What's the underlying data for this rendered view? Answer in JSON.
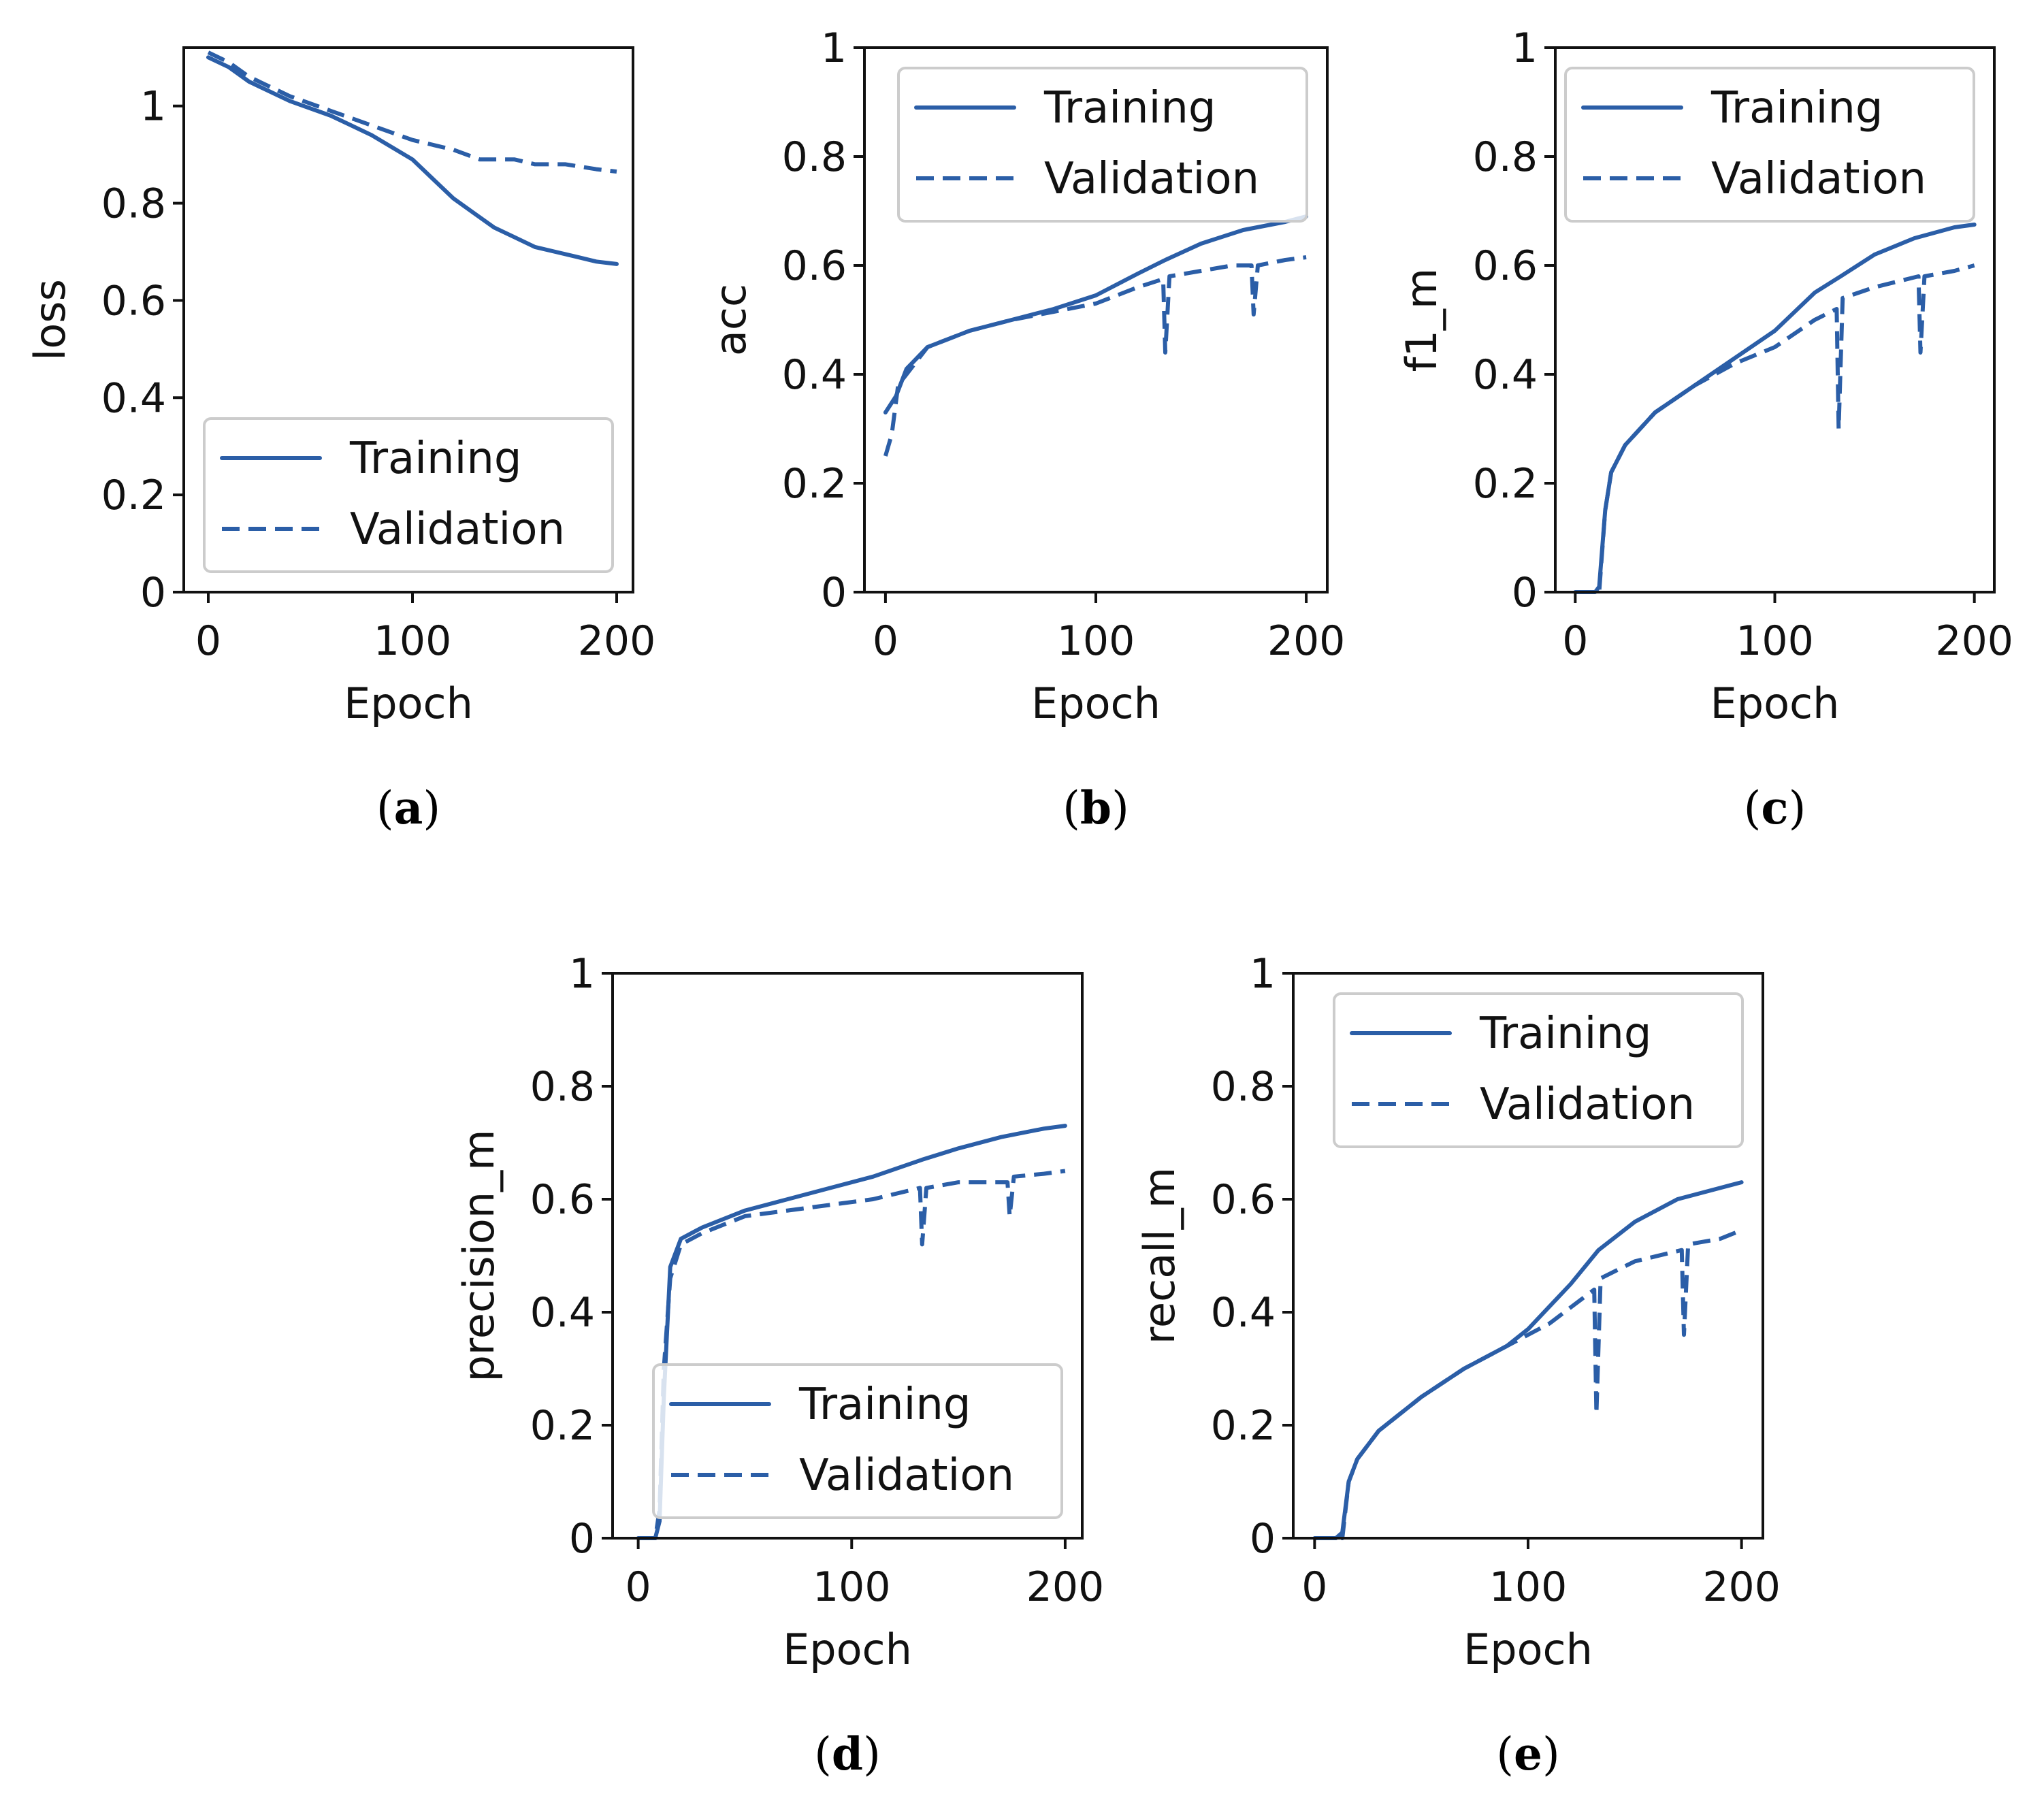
{
  "figure": {
    "captions": [
      "(a)",
      "(b)",
      "(c)",
      "(d)",
      "(e)"
    ]
  },
  "colors": {
    "series": "#2b5ea7"
  },
  "chart_data": [
    {
      "id": "a",
      "type": "line",
      "title": "",
      "caption": "(a)",
      "xlabel": "Epoch",
      "ylabel": "loss",
      "xlim": [
        -12,
        208
      ],
      "ylim": [
        0.0,
        1.12
      ],
      "xticks": [
        0,
        100,
        200
      ],
      "yticks": [
        0.0,
        0.2,
        0.4,
        0.6,
        0.8,
        1.0
      ],
      "legend": {
        "loc": "lower-right"
      },
      "series": [
        {
          "name": "Training",
          "style": "solid",
          "points": [
            [
              0,
              1.1
            ],
            [
              10,
              1.08
            ],
            [
              20,
              1.05
            ],
            [
              40,
              1.01
            ],
            [
              60,
              0.98
            ],
            [
              80,
              0.94
            ],
            [
              100,
              0.89
            ],
            [
              110,
              0.85
            ],
            [
              120,
              0.81
            ],
            [
              130,
              0.78
            ],
            [
              140,
              0.75
            ],
            [
              150,
              0.73
            ],
            [
              160,
              0.71
            ],
            [
              170,
              0.7
            ],
            [
              180,
              0.69
            ],
            [
              190,
              0.68
            ],
            [
              200,
              0.675
            ]
          ]
        },
        {
          "name": "Validation",
          "style": "dashed",
          "points": [
            [
              0,
              1.11
            ],
            [
              10,
              1.09
            ],
            [
              20,
              1.06
            ],
            [
              40,
              1.02
            ],
            [
              60,
              0.99
            ],
            [
              80,
              0.96
            ],
            [
              100,
              0.93
            ],
            [
              120,
              0.91
            ],
            [
              133,
              0.89
            ],
            [
              150,
              0.89
            ],
            [
              160,
              0.88
            ],
            [
              175,
              0.88
            ],
            [
              190,
              0.87
            ],
            [
              200,
              0.865
            ]
          ]
        }
      ]
    },
    {
      "id": "b",
      "type": "line",
      "title": "",
      "caption": "(b)",
      "xlabel": "Epoch",
      "ylabel": "acc",
      "xlim": [
        -10,
        210
      ],
      "ylim": [
        0.0,
        1.0
      ],
      "xticks": [
        0,
        100,
        200
      ],
      "yticks": [
        0.0,
        0.2,
        0.4,
        0.6,
        0.8,
        1.0
      ],
      "legend": {
        "loc": "top-right"
      },
      "series": [
        {
          "name": "Training",
          "style": "solid",
          "points": [
            [
              0,
              0.33
            ],
            [
              5,
              0.36
            ],
            [
              10,
              0.41
            ],
            [
              20,
              0.45
            ],
            [
              40,
              0.48
            ],
            [
              60,
              0.5
            ],
            [
              80,
              0.52
            ],
            [
              100,
              0.545
            ],
            [
              120,
              0.585
            ],
            [
              133,
              0.61
            ],
            [
              150,
              0.64
            ],
            [
              170,
              0.665
            ],
            [
              190,
              0.68
            ],
            [
              200,
              0.69
            ]
          ]
        },
        {
          "name": "Validation",
          "style": "dashed",
          "points": [
            [
              0,
              0.25
            ],
            [
              3,
              0.29
            ],
            [
              6,
              0.38
            ],
            [
              10,
              0.4
            ],
            [
              20,
              0.45
            ],
            [
              40,
              0.48
            ],
            [
              60,
              0.5
            ],
            [
              80,
              0.515
            ],
            [
              100,
              0.53
            ],
            [
              120,
              0.56
            ],
            [
              132,
              0.575
            ],
            [
              133,
              0.44
            ],
            [
              135,
              0.58
            ],
            [
              150,
              0.59
            ],
            [
              165,
              0.6
            ],
            [
              174,
              0.6
            ],
            [
              175,
              0.51
            ],
            [
              177,
              0.6
            ],
            [
              190,
              0.61
            ],
            [
              200,
              0.615
            ]
          ]
        }
      ]
    },
    {
      "id": "c",
      "type": "line",
      "title": "",
      "caption": "(c)",
      "xlabel": "Epoch",
      "ylabel": "f1_m",
      "xlim": [
        -10,
        210
      ],
      "ylim": [
        0.0,
        1.0
      ],
      "xticks": [
        0,
        100,
        200
      ],
      "yticks": [
        0.0,
        0.2,
        0.4,
        0.6,
        0.8,
        1.0
      ],
      "legend": {
        "loc": "top-right"
      },
      "series": [
        {
          "name": "Training",
          "style": "solid",
          "points": [
            [
              0,
              0.0
            ],
            [
              10,
              0.0
            ],
            [
              12,
              0.01
            ],
            [
              15,
              0.15
            ],
            [
              18,
              0.22
            ],
            [
              25,
              0.27
            ],
            [
              40,
              0.33
            ],
            [
              60,
              0.38
            ],
            [
              80,
              0.43
            ],
            [
              100,
              0.48
            ],
            [
              120,
              0.55
            ],
            [
              133,
              0.58
            ],
            [
              150,
              0.62
            ],
            [
              170,
              0.65
            ],
            [
              190,
              0.67
            ],
            [
              200,
              0.675
            ]
          ]
        },
        {
          "name": "Validation",
          "style": "dashed",
          "points": [
            [
              0,
              0.0
            ],
            [
              10,
              0.0
            ],
            [
              12,
              0.0
            ],
            [
              15,
              0.15
            ],
            [
              18,
              0.22
            ],
            [
              25,
              0.27
            ],
            [
              40,
              0.33
            ],
            [
              60,
              0.38
            ],
            [
              80,
              0.42
            ],
            [
              100,
              0.45
            ],
            [
              120,
              0.5
            ],
            [
              131,
              0.52
            ],
            [
              132,
              0.3
            ],
            [
              134,
              0.54
            ],
            [
              150,
              0.56
            ],
            [
              172,
              0.58
            ],
            [
              173,
              0.44
            ],
            [
              175,
              0.58
            ],
            [
              190,
              0.59
            ],
            [
              200,
              0.6
            ]
          ]
        }
      ]
    },
    {
      "id": "d",
      "type": "line",
      "title": "",
      "caption": "(d)",
      "xlabel": "Epoch",
      "ylabel": "precision_m",
      "xlim": [
        -12,
        208
      ],
      "ylim": [
        0.0,
        1.0
      ],
      "xticks": [
        0,
        100,
        200
      ],
      "yticks": [
        0.0,
        0.2,
        0.4,
        0.6,
        0.8,
        1.0
      ],
      "legend": {
        "loc": "lower-right"
      },
      "series": [
        {
          "name": "Training",
          "style": "solid",
          "points": [
            [
              0,
              0.0
            ],
            [
              8,
              0.0
            ],
            [
              10,
              0.03
            ],
            [
              12,
              0.25
            ],
            [
              15,
              0.48
            ],
            [
              20,
              0.53
            ],
            [
              30,
              0.55
            ],
            [
              50,
              0.58
            ],
            [
              70,
              0.6
            ],
            [
              90,
              0.62
            ],
            [
              110,
              0.64
            ],
            [
              133,
              0.67
            ],
            [
              150,
              0.69
            ],
            [
              170,
              0.71
            ],
            [
              190,
              0.725
            ],
            [
              200,
              0.73
            ]
          ]
        },
        {
          "name": "Validation",
          "style": "dashed",
          "points": [
            [
              0,
              0.0
            ],
            [
              8,
              0.0
            ],
            [
              10,
              0.05
            ],
            [
              12,
              0.3
            ],
            [
              15,
              0.46
            ],
            [
              20,
              0.52
            ],
            [
              30,
              0.54
            ],
            [
              50,
              0.57
            ],
            [
              70,
              0.58
            ],
            [
              90,
              0.59
            ],
            [
              110,
              0.6
            ],
            [
              132,
              0.62
            ],
            [
              133,
              0.52
            ],
            [
              135,
              0.62
            ],
            [
              150,
              0.63
            ],
            [
              173,
              0.63
            ],
            [
              174,
              0.57
            ],
            [
              176,
              0.64
            ],
            [
              190,
              0.645
            ],
            [
              200,
              0.65
            ]
          ]
        }
      ]
    },
    {
      "id": "e",
      "type": "line",
      "title": "",
      "caption": "(e)",
      "xlabel": "Epoch",
      "ylabel": "recall_m",
      "xlim": [
        -10,
        210
      ],
      "ylim": [
        0.0,
        1.0
      ],
      "xticks": [
        0,
        100,
        200
      ],
      "yticks": [
        0.0,
        0.2,
        0.4,
        0.6,
        0.8,
        1.0
      ],
      "legend": {
        "loc": "top-right"
      },
      "series": [
        {
          "name": "Training",
          "style": "solid",
          "points": [
            [
              0,
              0.0
            ],
            [
              10,
              0.0
            ],
            [
              13,
              0.01
            ],
            [
              16,
              0.1
            ],
            [
              20,
              0.14
            ],
            [
              30,
              0.19
            ],
            [
              50,
              0.25
            ],
            [
              70,
              0.3
            ],
            [
              90,
              0.34
            ],
            [
              100,
              0.37
            ],
            [
              120,
              0.45
            ],
            [
              133,
              0.51
            ],
            [
              150,
              0.56
            ],
            [
              170,
              0.6
            ],
            [
              190,
              0.62
            ],
            [
              200,
              0.63
            ]
          ]
        },
        {
          "name": "Validation",
          "style": "dashed",
          "points": [
            [
              0,
              0.0
            ],
            [
              10,
              0.0
            ],
            [
              13,
              0.0
            ],
            [
              16,
              0.1
            ],
            [
              20,
              0.14
            ],
            [
              30,
              0.19
            ],
            [
              50,
              0.25
            ],
            [
              70,
              0.3
            ],
            [
              90,
              0.34
            ],
            [
              110,
              0.38
            ],
            [
              131,
              0.44
            ],
            [
              132,
              0.22
            ],
            [
              134,
              0.46
            ],
            [
              150,
              0.49
            ],
            [
              172,
              0.51
            ],
            [
              173,
              0.36
            ],
            [
              175,
              0.52
            ],
            [
              190,
              0.53
            ],
            [
              200,
              0.545
            ]
          ]
        }
      ]
    }
  ]
}
